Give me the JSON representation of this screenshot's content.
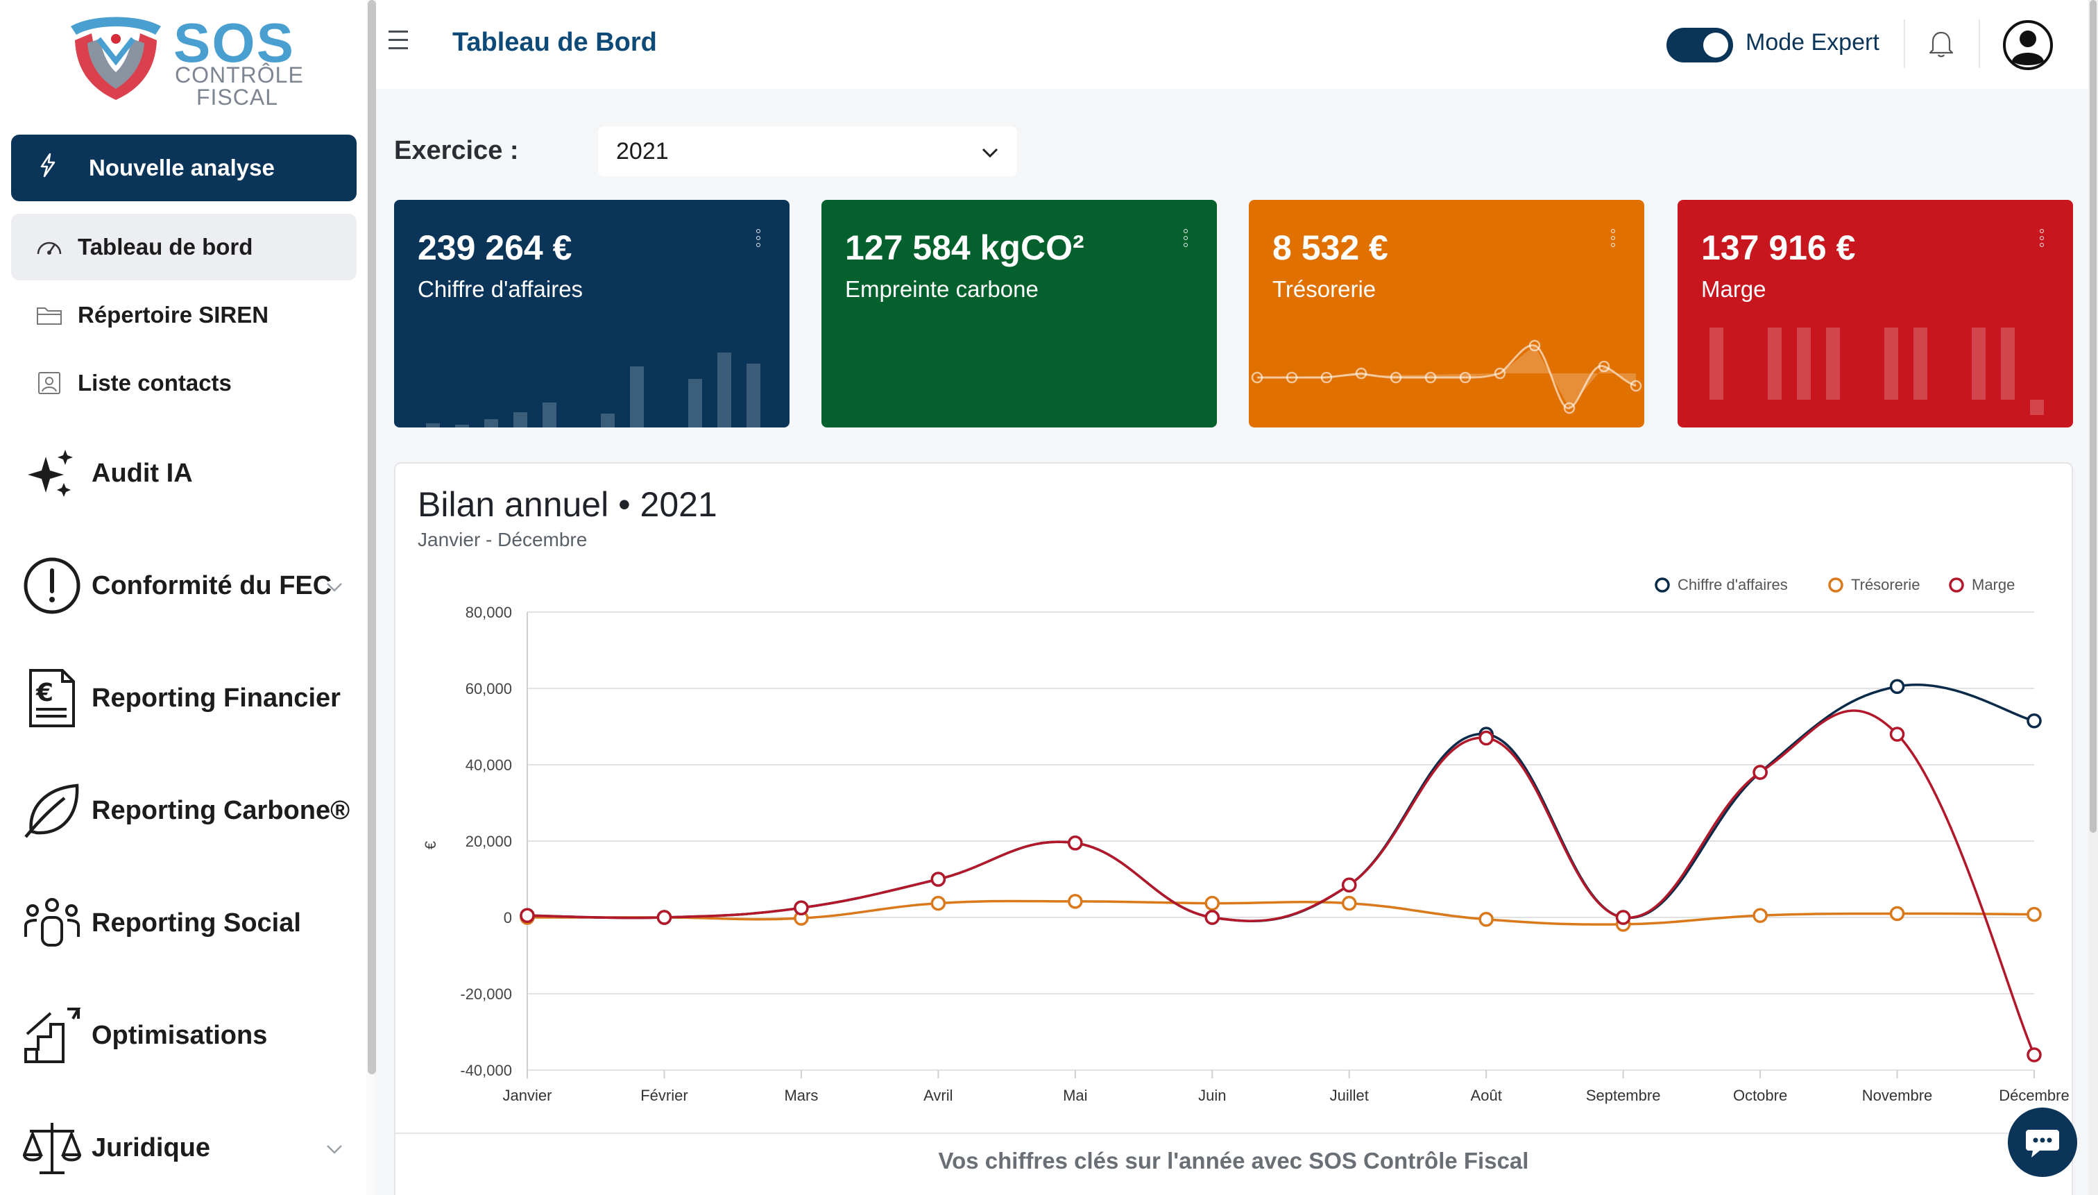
{
  "brand": {
    "line1": "SOS",
    "line2": "CONTRÔLE",
    "line3": "FISCAL"
  },
  "sidebar": {
    "new_analysis": "Nouvelle analyse",
    "items": [
      {
        "label": "Tableau de bord",
        "icon": "gauge-icon"
      },
      {
        "label": "Répertoire SIREN",
        "icon": "folder-icon"
      },
      {
        "label": "Liste contacts",
        "icon": "contact-icon"
      }
    ],
    "sections": [
      {
        "label": "Audit IA",
        "icon": "sparkles-icon"
      },
      {
        "label": "Conformité du FEC",
        "icon": "alert-circle-icon"
      },
      {
        "label": "Reporting Financier",
        "icon": "euro-document-icon"
      },
      {
        "label": "Reporting Carbone®",
        "icon": "leaf-icon"
      },
      {
        "label": "Reporting Social",
        "icon": "people-icon"
      },
      {
        "label": "Optimisations",
        "icon": "growth-chart-icon"
      },
      {
        "label": "Juridique",
        "icon": "scales-icon"
      }
    ]
  },
  "header": {
    "title": "Tableau de Bord",
    "mode_label": "Mode Expert"
  },
  "exercise": {
    "label": "Exercice :",
    "selected": "2021"
  },
  "cards": [
    {
      "value": "239 264 €",
      "label": "Chiffre d'affaires",
      "color": "#0a3559"
    },
    {
      "value": "127 584 kgCO²",
      "label": "Empreinte carbone",
      "color": "#04602d"
    },
    {
      "value": "8 532 €",
      "label": "Trésorerie",
      "color": "#e07000"
    },
    {
      "value": "137 916 €",
      "label": "Marge",
      "color": "#c8161f"
    }
  ],
  "panel": {
    "title": "Bilan annuel • 2021",
    "subtitle": "Janvier - Décembre",
    "footer": "Vos chiffres clés sur l'année avec SOS Contrôle Fiscal"
  },
  "chart_data": {
    "type": "line",
    "ylabel": "€",
    "ylim": [
      -40000,
      80000
    ],
    "yticks": [
      "80,000",
      "60,000",
      "40,000",
      "20,000",
      "0",
      "-20,000",
      "-40,000"
    ],
    "legend_position": "top-right",
    "categories": [
      "Janvier",
      "Février",
      "Mars",
      "Avril",
      "Mai",
      "Juin",
      "Juillet",
      "Août",
      "Septembre",
      "Octobre",
      "Novembre",
      "Décembre"
    ],
    "series": [
      {
        "name": "Chiffre d'affaires",
        "color": "#0a2a4a",
        "values": [
          500,
          0,
          2500,
          10000,
          19500,
          0,
          8500,
          48000,
          0,
          38000,
          60500,
          51500
        ]
      },
      {
        "name": "Trésorerie",
        "color": "#d9791c",
        "values": [
          0,
          0,
          -200,
          3700,
          4200,
          3700,
          3700,
          -500,
          -1800,
          500,
          1000,
          800
        ]
      },
      {
        "name": "Marge",
        "color": "#b3182a",
        "values": [
          500,
          0,
          2500,
          10000,
          19500,
          0,
          8500,
          47000,
          0,
          38000,
          48000,
          -36000
        ]
      }
    ]
  }
}
